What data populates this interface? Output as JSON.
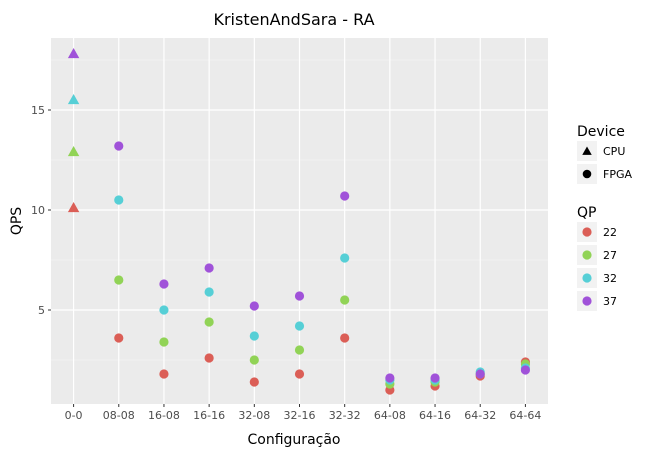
{
  "chart_data": {
    "type": "scatter",
    "title": "KristenAndSara - RA",
    "xlabel": "Configuração",
    "ylabel": "QPS",
    "categories": [
      "0-0",
      "08-08",
      "16-08",
      "16-16",
      "32-08",
      "32-16",
      "32-32",
      "64-08",
      "64-16",
      "64-32",
      "64-64"
    ],
    "y_ticks": [
      5,
      10,
      15
    ],
    "ylim": [
      0.3,
      18.6
    ],
    "grid": true,
    "legends": {
      "shape": {
        "title": "Device",
        "entries": [
          {
            "label": "CPU",
            "shape": "triangle"
          },
          {
            "label": "FPGA",
            "shape": "circle"
          }
        ]
      },
      "color": {
        "title": "QP",
        "entries": [
          {
            "label": "22",
            "color": "#db5e56"
          },
          {
            "label": "27",
            "color": "#91d356"
          },
          {
            "label": "32",
            "color": "#56cfd6"
          },
          {
            "label": "37",
            "color": "#a052d9"
          }
        ]
      },
      "placement": "right"
    },
    "series": [
      {
        "qp": "22",
        "color": "#db5e56",
        "points": [
          {
            "x": "0-0",
            "y": 10.1,
            "device": "CPU"
          },
          {
            "x": "08-08",
            "y": 3.6,
            "device": "FPGA"
          },
          {
            "x": "16-08",
            "y": 1.8,
            "device": "FPGA"
          },
          {
            "x": "16-16",
            "y": 2.6,
            "device": "FPGA"
          },
          {
            "x": "32-08",
            "y": 1.4,
            "device": "FPGA"
          },
          {
            "x": "32-16",
            "y": 1.8,
            "device": "FPGA"
          },
          {
            "x": "32-32",
            "y": 3.6,
            "device": "FPGA"
          },
          {
            "x": "64-08",
            "y": 1.0,
            "device": "FPGA"
          },
          {
            "x": "64-16",
            "y": 1.2,
            "device": "FPGA"
          },
          {
            "x": "64-32",
            "y": 1.7,
            "device": "FPGA"
          },
          {
            "x": "64-64",
            "y": 2.4,
            "device": "FPGA"
          }
        ]
      },
      {
        "qp": "27",
        "color": "#91d356",
        "points": [
          {
            "x": "0-0",
            "y": 12.9,
            "device": "CPU"
          },
          {
            "x": "08-08",
            "y": 6.5,
            "device": "FPGA"
          },
          {
            "x": "16-08",
            "y": 3.4,
            "device": "FPGA"
          },
          {
            "x": "16-16",
            "y": 4.4,
            "device": "FPGA"
          },
          {
            "x": "32-08",
            "y": 2.5,
            "device": "FPGA"
          },
          {
            "x": "32-16",
            "y": 3.0,
            "device": "FPGA"
          },
          {
            "x": "32-32",
            "y": 5.5,
            "device": "FPGA"
          },
          {
            "x": "64-08",
            "y": 1.3,
            "device": "FPGA"
          },
          {
            "x": "64-16",
            "y": 1.4,
            "device": "FPGA"
          },
          {
            "x": "64-32",
            "y": 1.8,
            "device": "FPGA"
          },
          {
            "x": "64-64",
            "y": 2.3,
            "device": "FPGA"
          }
        ]
      },
      {
        "qp": "32",
        "color": "#56cfd6",
        "points": [
          {
            "x": "0-0",
            "y": 15.5,
            "device": "CPU"
          },
          {
            "x": "08-08",
            "y": 10.5,
            "device": "FPGA"
          },
          {
            "x": "16-08",
            "y": 5.0,
            "device": "FPGA"
          },
          {
            "x": "16-16",
            "y": 5.9,
            "device": "FPGA"
          },
          {
            "x": "32-08",
            "y": 3.7,
            "device": "FPGA"
          },
          {
            "x": "32-16",
            "y": 4.2,
            "device": "FPGA"
          },
          {
            "x": "32-32",
            "y": 7.6,
            "device": "FPGA"
          },
          {
            "x": "64-08",
            "y": 1.5,
            "device": "FPGA"
          },
          {
            "x": "64-16",
            "y": 1.5,
            "device": "FPGA"
          },
          {
            "x": "64-32",
            "y": 1.9,
            "device": "FPGA"
          },
          {
            "x": "64-64",
            "y": 2.1,
            "device": "FPGA"
          }
        ]
      },
      {
        "qp": "37",
        "color": "#a052d9",
        "points": [
          {
            "x": "0-0",
            "y": 17.8,
            "device": "CPU"
          },
          {
            "x": "08-08",
            "y": 13.2,
            "device": "FPGA"
          },
          {
            "x": "16-08",
            "y": 6.3,
            "device": "FPGA"
          },
          {
            "x": "16-16",
            "y": 7.1,
            "device": "FPGA"
          },
          {
            "x": "32-08",
            "y": 5.2,
            "device": "FPGA"
          },
          {
            "x": "32-16",
            "y": 5.7,
            "device": "FPGA"
          },
          {
            "x": "32-32",
            "y": 10.7,
            "device": "FPGA"
          },
          {
            "x": "64-08",
            "y": 1.6,
            "device": "FPGA"
          },
          {
            "x": "64-16",
            "y": 1.6,
            "device": "FPGA"
          },
          {
            "x": "64-32",
            "y": 1.8,
            "device": "FPGA"
          },
          {
            "x": "64-64",
            "y": 2.0,
            "device": "FPGA"
          }
        ]
      }
    ]
  }
}
